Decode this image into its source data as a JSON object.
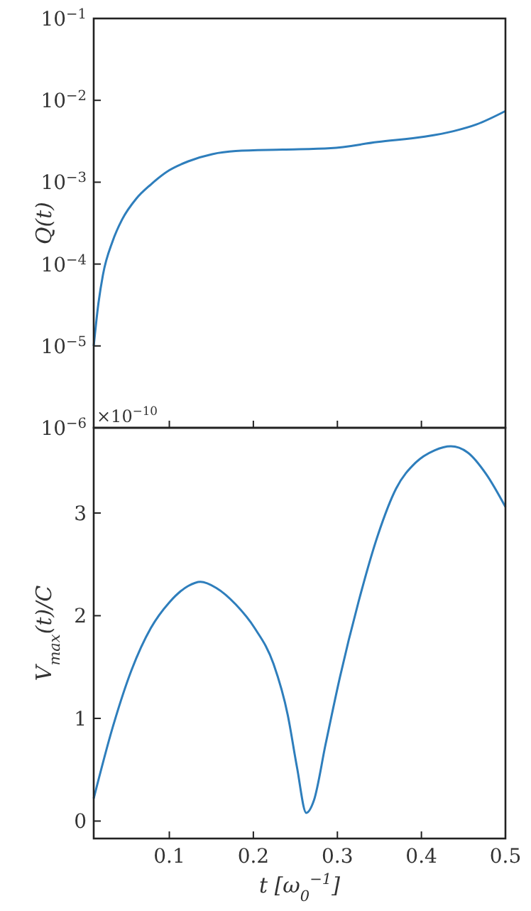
{
  "chart_data": [
    {
      "type": "line",
      "ylabel": "Q(t)",
      "log": "y",
      "tick_labels": "y",
      "xlim": [
        0.01,
        0.5
      ],
      "xticks": [
        {
          "value": 0.1,
          "label": null
        },
        {
          "value": 0.2,
          "label": null
        },
        {
          "value": 0.3,
          "label": null
        },
        {
          "value": 0.4,
          "label": null
        }
      ],
      "ylim": [
        1e-06,
        0.1
      ],
      "yticks": [
        {
          "value": 1e-06,
          "label": "10$^{−6}$"
        },
        {
          "value": 1e-05,
          "label": "10$^{−5}$"
        },
        {
          "value": 0.0001,
          "label": "10$^{−4}$"
        },
        {
          "value": 0.001,
          "label": "10$^{−3}$"
        },
        {
          "value": 0.01,
          "label": "10$^{−2}$"
        },
        {
          "value": 0.1,
          "label": "10$^{−1}$"
        }
      ],
      "series": [
        {
          "color": "#2e7ebc",
          "x": [
            0.01,
            0.0156,
            0.021,
            0.0325,
            0.0438,
            0.0607,
            0.0776,
            0.1,
            0.1226,
            0.151,
            0.179,
            0.235,
            0.292,
            0.348,
            0.404,
            0.438,
            0.466,
            0.5
          ],
          "values": [
            1e-05,
            3.3e-05,
            7.4e-05,
            0.00019,
            0.00035,
            0.00063,
            0.00093,
            0.0014,
            0.0018,
            0.0022,
            0.0024,
            0.0025,
            0.0026,
            0.0031,
            0.0036,
            0.0042,
            0.0051,
            0.0074
          ]
        }
      ]
    },
    {
      "type": "line",
      "xlabel": "t [ω$_{0}$$^{−1}$]",
      "ylabel": "V$_{max}$(t)/C",
      "annotations": [
        "×10$^{−10}$"
      ],
      "xlim": [
        0.01,
        0.5
      ],
      "xticks": [
        0.1,
        0.2,
        0.3,
        0.4,
        0.5
      ],
      "ylim": [
        -0.17,
        3.83
      ],
      "yticks": [
        0,
        1,
        2,
        3
      ],
      "series": [
        {
          "color": "#2e7ebc",
          "x": [
            0.01,
            0.0325,
            0.055,
            0.078,
            0.1,
            0.1226,
            0.137,
            0.156,
            0.179,
            0.2015,
            0.224,
            0.241,
            0.252,
            0.263,
            0.272,
            0.286,
            0.303,
            0.325,
            0.348,
            0.37,
            0.393,
            0.4155,
            0.435,
            0.455,
            0.477,
            0.5
          ],
          "values": [
            0.22,
            0.91,
            1.47,
            1.88,
            2.13,
            2.29,
            2.33,
            2.27,
            2.11,
            1.88,
            1.53,
            1.03,
            0.52,
            0.08,
            0.2,
            0.75,
            1.4,
            2.13,
            2.78,
            3.24,
            3.49,
            3.61,
            3.65,
            3.59,
            3.38,
            3.06
          ]
        }
      ]
    }
  ]
}
